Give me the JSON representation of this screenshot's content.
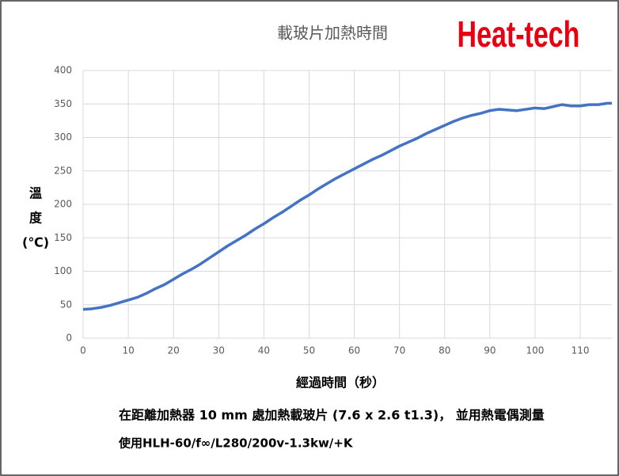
{
  "chart_data": {
    "type": "line",
    "title": "載玻片加熱時間",
    "brand": "Heat-tech",
    "ylabel": [
      "溫",
      "度",
      "(℃)"
    ],
    "xlabel": "經過時間（秒）",
    "notes": [
      "在距離加熱器 10 mm 處加熱載玻片 (7.6 x 2.6 t1.3)， 並用熱電偶測量",
      "使用HLH-60/f∞/L280/200v-1.3kw/+K"
    ],
    "x": [
      0,
      2,
      4,
      6,
      8,
      10,
      12,
      14,
      16,
      18,
      20,
      22,
      24,
      26,
      28,
      30,
      32,
      34,
      36,
      38,
      40,
      42,
      44,
      46,
      48,
      50,
      52,
      54,
      56,
      58,
      60,
      62,
      64,
      66,
      68,
      70,
      72,
      74,
      76,
      78,
      80,
      82,
      84,
      86,
      88,
      90,
      92,
      94,
      96,
      98,
      100,
      102,
      104,
      106,
      108,
      110,
      112,
      114,
      116,
      117
    ],
    "series": [
      {
        "color": "#4472c4",
        "values": [
          43,
          44,
          46,
          49,
          53,
          57,
          61,
          67,
          74,
          80,
          88,
          96,
          103,
          111,
          120,
          129,
          138,
          146,
          154,
          163,
          171,
          180,
          188,
          197,
          206,
          214,
          223,
          231,
          239,
          246,
          253,
          260,
          267,
          273,
          280,
          287,
          293,
          299,
          306,
          312,
          318,
          324,
          329,
          333,
          336,
          340,
          342,
          341,
          340,
          342,
          344,
          343,
          346,
          349,
          347,
          347,
          349,
          349,
          351,
          351
        ]
      }
    ],
    "xlim": [
      0,
      117
    ],
    "xticks": [
      0,
      10,
      20,
      30,
      40,
      50,
      60,
      70,
      80,
      90,
      100,
      110
    ],
    "ylim": [
      0,
      400
    ],
    "yticks": [
      0,
      50,
      100,
      150,
      200,
      250,
      300,
      350,
      400
    ],
    "grid": true
  }
}
